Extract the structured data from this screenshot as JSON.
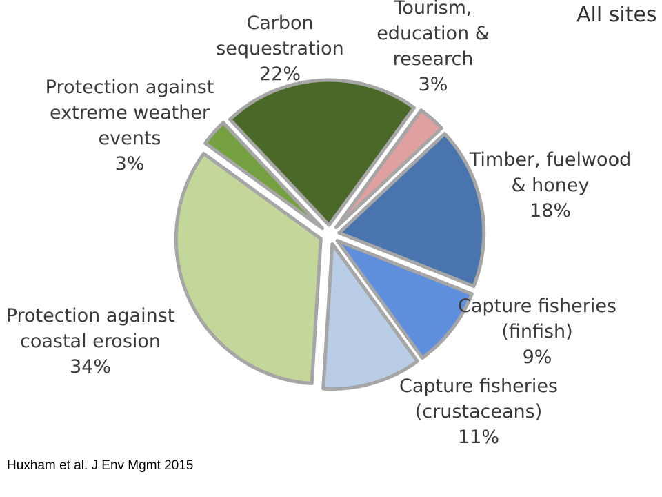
{
  "chart_data": {
    "type": "pie",
    "title": "All sites",
    "slices": [
      {
        "label": [
          "Carbon",
          "sequestration",
          "22%"
        ],
        "name": "Carbon sequestration",
        "value": 22,
        "color": "#4a6828"
      },
      {
        "label": [
          "Tourism,",
          "education &",
          "research",
          "3%"
        ],
        "name": "Tourism, education & research",
        "value": 3,
        "color": "#e0a0a0"
      },
      {
        "label": [
          "Timber, fuelwood",
          "& honey",
          "18%"
        ],
        "name": "Timber, fuelwood & honey",
        "value": 18,
        "color": "#4a74ad"
      },
      {
        "label": [
          "Capture fisheries",
          "(finfish)",
          "9%"
        ],
        "name": "Capture fisheries (finfish)",
        "value": 9,
        "color": "#5e8fdc"
      },
      {
        "label": [
          "Capture fisheries",
          "(crustaceans)",
          "11%"
        ],
        "name": "Capture fisheries (crustaceans)",
        "value": 11,
        "color": "#b9cde7"
      },
      {
        "label": [
          "Protection against",
          "coastal erosion",
          "34%"
        ],
        "name": "Protection against coastal erosion",
        "value": 34,
        "color": "#c3d79b"
      },
      {
        "label": [
          "Protection against",
          "extreme weather",
          "events",
          "3%"
        ],
        "name": "Protection against extreme weather events",
        "value": 3,
        "color": "#74a040"
      }
    ]
  },
  "citation": "Huxham et al. J Env Mgmt 2015"
}
